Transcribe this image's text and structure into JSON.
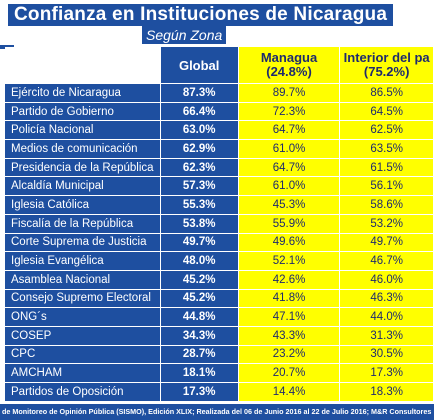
{
  "header": {
    "title": "Confianza en Instituciones de Nicaragua",
    "subtitle": "Según Zona"
  },
  "colors": {
    "primary_blue": "#1e4fa0",
    "highlight_yellow": "#ffff00",
    "header_text_dark": "#1e2a6e"
  },
  "chart_data": {
    "type": "table",
    "title": "Confianza en Instituciones de Nicaragua",
    "subtitle": "Según Zona",
    "columns": [
      {
        "key": "global",
        "label": "Global",
        "line2": ""
      },
      {
        "key": "managua",
        "label": "Managua",
        "line2": "(24.8%)"
      },
      {
        "key": "interior",
        "label": "Interior del pa",
        "line2": "(75.2%)"
      }
    ],
    "rows": [
      {
        "name": "Ejército de Nicaragua",
        "global": "87.3%",
        "managua": "89.7%",
        "interior": "86.5%"
      },
      {
        "name": "Partido de Gobierno",
        "global": "66.4%",
        "managua": "72.3%",
        "interior": "64.5%"
      },
      {
        "name": "Policía Nacional",
        "global": "63.0%",
        "managua": "64.7%",
        "interior": "62.5%"
      },
      {
        "name": "Medios de comunicación",
        "global": "62.9%",
        "managua": "61.0%",
        "interior": "63.5%"
      },
      {
        "name": "Presidencia de la República",
        "global": "62.3%",
        "managua": "64.7%",
        "interior": "61.5%"
      },
      {
        "name": "Alcaldía Municipal",
        "global": "57.3%",
        "managua": "61.0%",
        "interior": "56.1%"
      },
      {
        "name": "Iglesia Católica",
        "global": "55.3%",
        "managua": "45.3%",
        "interior": "58.6%"
      },
      {
        "name": "Fiscalía de la República",
        "global": "53.8%",
        "managua": "55.9%",
        "interior": "53.2%"
      },
      {
        "name": "Corte Suprema de Justicia",
        "global": "49.7%",
        "managua": "49.6%",
        "interior": "49.7%"
      },
      {
        "name": "Iglesia Evangélica",
        "global": "48.0%",
        "managua": "52.1%",
        "interior": "46.7%"
      },
      {
        "name": "Asamblea Nacional",
        "global": "45.2%",
        "managua": "42.6%",
        "interior": "46.0%"
      },
      {
        "name": "Consejo Supremo Electoral",
        "global": "45.2%",
        "managua": "41.8%",
        "interior": "46.3%"
      },
      {
        "name": "ONG´s",
        "global": "44.8%",
        "managua": "47.1%",
        "interior": "44.0%"
      },
      {
        "name": "COSEP",
        "global": "34.3%",
        "managua": "43.3%",
        "interior": "31.3%"
      },
      {
        "name": "CPC",
        "global": "28.7%",
        "managua": "23.2%",
        "interior": "30.5%"
      },
      {
        "name": "AMCHAM",
        "global": "18.1%",
        "managua": "20.7%",
        "interior": "17.3%"
      },
      {
        "name": "Partidos de Oposición",
        "global": "17.3%",
        "managua": "14.4%",
        "interior": "18.3%"
      }
    ]
  },
  "footer": {
    "source": "de Monitoreo de Opinión Pública (SISMO), Edición XLIX; Realizada del  06 de Junio 2016 al 22 de Julio 2016; M&R Consultores"
  }
}
